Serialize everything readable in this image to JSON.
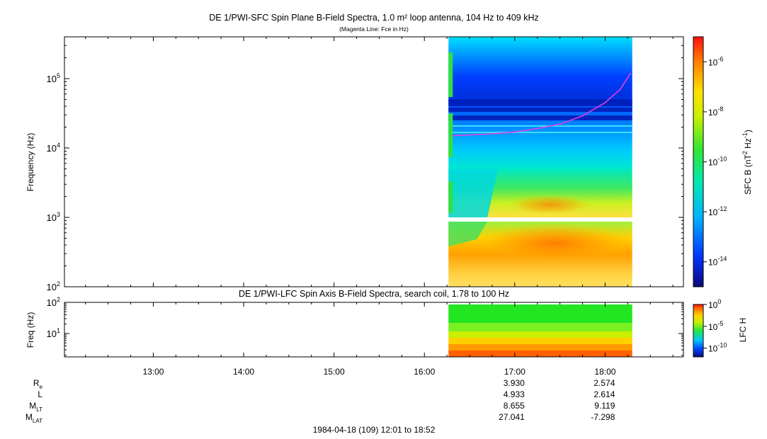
{
  "chart_data": [
    {
      "type": "heatmap",
      "title": "DE 1/PWI-SFC  Spin Plane B-Field Spectra, 1.0 m² loop antenna, 104 Hz to 409 kHz",
      "subtitle": "(Magenta Line: Fce in Hz)",
      "ylabel": "Frequency (Hz)",
      "y_scale": "log",
      "ylim": [
        100,
        400000
      ],
      "y_ticks": [
        {
          "value": 100,
          "base": "10",
          "exp": "2"
        },
        {
          "value": 1000,
          "base": "10",
          "exp": "3"
        },
        {
          "value": 10000,
          "base": "10",
          "exp": "4"
        },
        {
          "value": 100000,
          "base": "10",
          "exp": "5"
        }
      ],
      "data_start": "16:16",
      "data_end": "18:18",
      "colorbar": {
        "label_base": "SFC B (nT",
        "label_sup1": "2",
        "label_mid": " Hz",
        "label_sup2": "-1",
        "label_end": ")",
        "scale": "log",
        "range": [
          1e-15,
          1e-05
        ],
        "ticks": [
          {
            "value": 1e-06,
            "base": "10",
            "exp": "-6"
          },
          {
            "value": 1e-08,
            "base": "10",
            "exp": "-8"
          },
          {
            "value": 1e-10,
            "base": "10",
            "exp": "-10"
          },
          {
            "value": 1e-12,
            "base": "10",
            "exp": "-12"
          },
          {
            "value": 1e-14,
            "base": "10",
            "exp": "-14"
          }
        ]
      },
      "fce_line": {
        "color": "#e040e0",
        "times": [
          "16:18",
          "16:45",
          "17:00",
          "17:15",
          "17:30",
          "17:45",
          "18:00",
          "18:10",
          "18:17"
        ],
        "values": [
          15000,
          16000,
          17000,
          19000,
          22000,
          29000,
          45000,
          70000,
          120000
        ]
      }
    },
    {
      "type": "heatmap",
      "title": "DE 1/PWI-LFC  Spin Axis B-Field Spectra, search coil, 1.78 to 100 Hz",
      "ylabel": "Freq (Hz)",
      "y_scale": "log",
      "ylim": [
        1.78,
        100
      ],
      "y_ticks": [
        {
          "value": 10,
          "base": "10",
          "exp": "1"
        },
        {
          "value": 100,
          "base": "10",
          "exp": "2"
        }
      ],
      "data_start": "16:16",
      "data_end": "18:18",
      "colorbar": {
        "label": "LFC H",
        "scale": "log",
        "range": [
          1e-12,
          1
        ],
        "ticks": [
          {
            "value": 1,
            "base": "10",
            "exp": "0"
          },
          {
            "value": 1e-05,
            "base": "10",
            "exp": "-5"
          },
          {
            "value": 1e-10,
            "base": "10",
            "exp": "-10"
          }
        ]
      }
    }
  ],
  "x_axis": {
    "range": [
      "12:01",
      "18:52"
    ],
    "ticks": [
      "13:00",
      "14:00",
      "15:00",
      "16:00",
      "17:00",
      "18:00"
    ]
  },
  "ephemeris": {
    "rows": [
      {
        "label": "R",
        "sub": "e",
        "values": [
          "3.930",
          "2.574"
        ]
      },
      {
        "label": "L",
        "sub": "",
        "values": [
          "4.933",
          "2.614"
        ]
      },
      {
        "label": "M",
        "sub": "LT",
        "values": [
          "8.655",
          "9.119"
        ]
      },
      {
        "label": "M",
        "sub": "LAT",
        "values": [
          "27.041",
          "-7.298"
        ]
      }
    ],
    "at_ticks": [
      "17:00",
      "18:00"
    ]
  },
  "footer": "1984-04-18 (109) 12:01 to 18:52"
}
